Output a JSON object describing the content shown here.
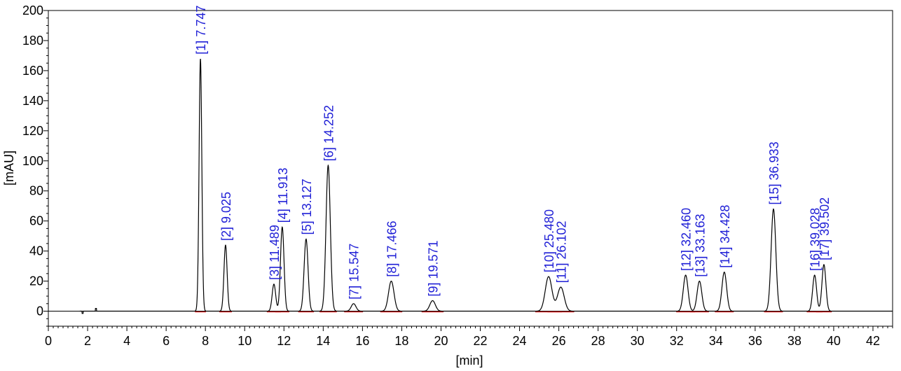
{
  "chart_data": {
    "type": "line",
    "xlabel": "[min]",
    "ylabel": "[mAU]",
    "xlim": [
      0,
      43
    ],
    "ylim": [
      -10,
      200
    ],
    "x_ticks": [
      0,
      2,
      4,
      6,
      8,
      10,
      12,
      14,
      16,
      18,
      20,
      22,
      24,
      26,
      28,
      30,
      32,
      34,
      36,
      38,
      40,
      42
    ],
    "x_tick_labels": [
      "0",
      "2",
      "4",
      "6",
      "8",
      "10",
      "12",
      "14",
      "16",
      "18",
      "20",
      "22",
      "24",
      "26",
      "28",
      "30",
      "32",
      "34",
      "36",
      "38",
      "40",
      "42"
    ],
    "y_ticks": [
      0,
      20,
      40,
      60,
      80,
      100,
      120,
      140,
      160,
      180,
      200
    ],
    "y_tick_labels": [
      "0",
      "20",
      "40",
      "60",
      "80",
      "100",
      "120",
      "140",
      "160",
      "180",
      "200"
    ],
    "grid": false,
    "line_color": "#000000",
    "label_color": "#1f1fd6",
    "baseline_color": "#cc0000",
    "peaks": [
      {
        "label": "[1]  7.747",
        "rt": 7.747,
        "height": 168,
        "width": 0.07
      },
      {
        "label": "[2]  9.025",
        "rt": 9.025,
        "height": 44,
        "width": 0.08
      },
      {
        "label": "[3]  11.489",
        "rt": 11.489,
        "height": 18,
        "width": 0.09
      },
      {
        "label": "[4]  11.913",
        "rt": 11.913,
        "height": 56,
        "width": 0.09
      },
      {
        "label": "[5]  13.127",
        "rt": 13.127,
        "height": 48,
        "width": 0.1
      },
      {
        "label": "[6]  14.252",
        "rt": 14.252,
        "height": 97,
        "width": 0.11
      },
      {
        "label": "[7]  15.547",
        "rt": 15.547,
        "height": 5,
        "width": 0.12
      },
      {
        "label": "[8]  17.466",
        "rt": 17.466,
        "height": 20,
        "width": 0.14
      },
      {
        "label": "[9]  19.571",
        "rt": 19.571,
        "height": 7,
        "width": 0.14
      },
      {
        "label": "[10]  25.480",
        "rt": 25.48,
        "height": 23,
        "width": 0.17
      },
      {
        "label": "[11]  26.102",
        "rt": 26.102,
        "height": 16,
        "width": 0.17
      },
      {
        "label": "[12]  32.460",
        "rt": 32.46,
        "height": 24,
        "width": 0.12
      },
      {
        "label": "[13]  33.163",
        "rt": 33.163,
        "height": 20,
        "width": 0.12
      },
      {
        "label": "[14]  34.428",
        "rt": 34.428,
        "height": 26,
        "width": 0.12
      },
      {
        "label": "[15]  36.933",
        "rt": 36.933,
        "height": 68,
        "width": 0.12
      },
      {
        "label": "[16]  39.028",
        "rt": 39.028,
        "height": 24,
        "width": 0.1
      },
      {
        "label": "[17]  39.502",
        "rt": 39.502,
        "height": 31,
        "width": 0.1
      }
    ]
  }
}
